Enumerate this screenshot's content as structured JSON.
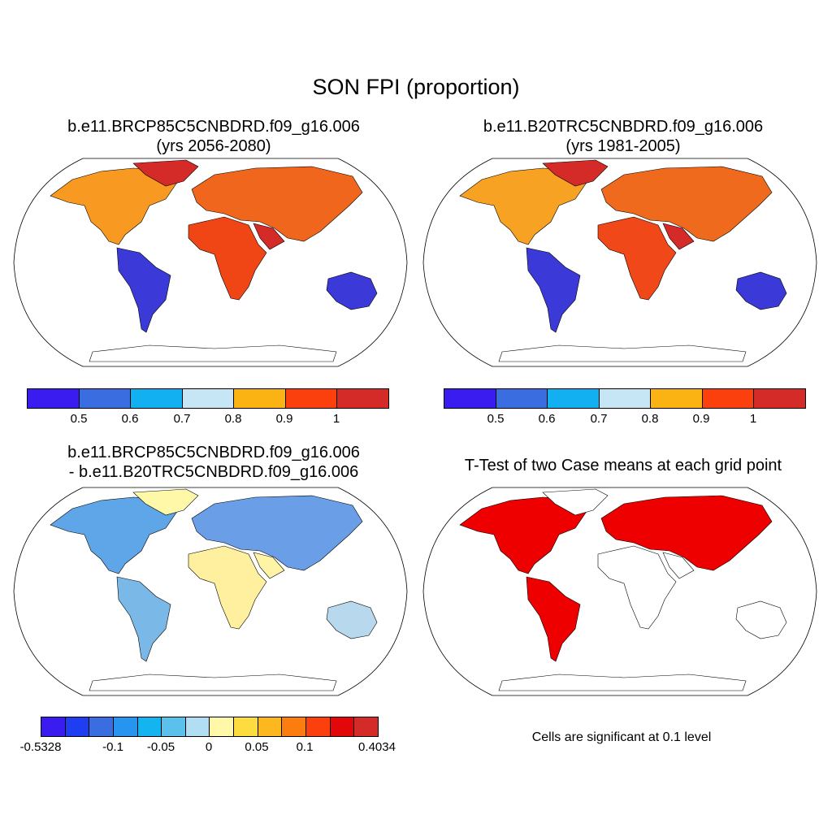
{
  "main_title": "SON FPI (proportion)",
  "panels": {
    "top_left": {
      "title_line1": "b.e11.BRCP85C5CNBDRD.f09_g16.006",
      "title_line2": "(yrs 2056-2080)"
    },
    "top_right": {
      "title_line1": "b.e11.B20TRC5CNBDRD.f09_g16.006",
      "title_line2": "(yrs 1981-2005)"
    },
    "bottom_left": {
      "title_line1": "b.e11.BRCP85C5CNBDRD.f09_g16.006",
      "title_line2": "- b.e11.B20TRC5CNBDRD.f09_g16.006"
    },
    "bottom_right": {
      "title_line1": "T-Test of two Case means at each grid point",
      "note": "Cells are significant at 0.1 level"
    }
  },
  "colorbar_fpi": {
    "colors": [
      "#3b1cf0",
      "#3a6ee0",
      "#12b0f0",
      "#c6e5f5",
      "#fbb313",
      "#fb3f0d",
      "#d42a28"
    ],
    "labels": [
      "0.5",
      "0.6",
      "0.7",
      "0.8",
      "0.9",
      "1"
    ]
  },
  "colorbar_diff": {
    "colors": [
      "#3b1cf0",
      "#1f3ef2",
      "#3a6ee0",
      "#2695f0",
      "#14b4f0",
      "#5bc0ec",
      "#b2def4",
      "#fff8a8",
      "#fcdc3e",
      "#fcb81e",
      "#fc7d0f",
      "#fb3f0d",
      "#e2080a",
      "#d42a28"
    ],
    "labels": [
      "-0.5328",
      "-0.1",
      "-0.05",
      "0",
      "0.05",
      "0.1",
      "0.4034"
    ]
  },
  "map_colors": {
    "land_outline": "#000000",
    "significance": "#ee0000"
  }
}
